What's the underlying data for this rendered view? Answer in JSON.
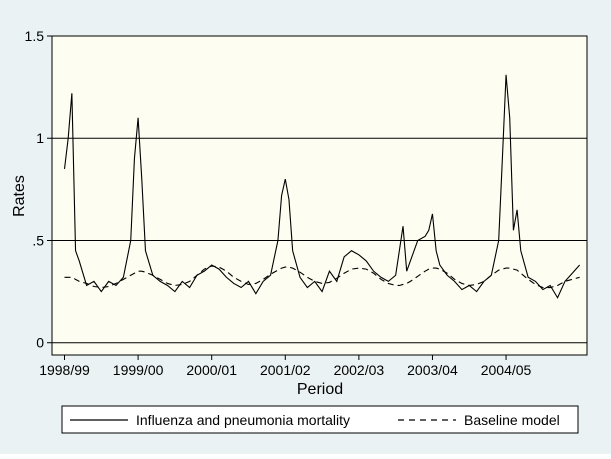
{
  "chart_data": {
    "type": "line",
    "x_label": "Period",
    "y_label": "Rates",
    "xlim": [
      -0.17,
      7.1
    ],
    "ylim": [
      -0.06,
      1.5
    ],
    "xticks": [
      {
        "value": 0,
        "label": "1998/99"
      },
      {
        "value": 1,
        "label": "1999/00"
      },
      {
        "value": 2,
        "label": "2000/01"
      },
      {
        "value": 3,
        "label": "2001/02"
      },
      {
        "value": 4,
        "label": "2002/03"
      },
      {
        "value": 5,
        "label": "2003/04"
      },
      {
        "value": 6,
        "label": "2004/05"
      }
    ],
    "yticks": [
      0,
      {
        "value": 0.5,
        "label": ".5"
      },
      1,
      1.5
    ],
    "grid": true,
    "x": [
      0,
      0.05,
      0.1,
      0.15,
      0.2,
      0.3,
      0.4,
      0.5,
      0.6,
      0.7,
      0.8,
      0.9,
      0.95,
      1.0,
      1.05,
      1.1,
      1.2,
      1.3,
      1.4,
      1.5,
      1.6,
      1.7,
      1.8,
      1.9,
      2.0,
      2.1,
      2.2,
      2.3,
      2.4,
      2.5,
      2.6,
      2.7,
      2.8,
      2.9,
      2.95,
      3.0,
      3.05,
      3.1,
      3.2,
      3.3,
      3.4,
      3.5,
      3.6,
      3.7,
      3.8,
      3.9,
      4.0,
      4.1,
      4.2,
      4.3,
      4.4,
      4.5,
      4.55,
      4.6,
      4.65,
      4.7,
      4.8,
      4.9,
      4.95,
      5.0,
      5.05,
      5.1,
      5.2,
      5.3,
      5.4,
      5.5,
      5.6,
      5.7,
      5.8,
      5.9,
      5.95,
      6.0,
      6.05,
      6.1,
      6.15,
      6.2,
      6.3,
      6.4,
      6.5,
      6.6,
      6.7,
      6.8,
      6.9,
      7.0
    ],
    "series": [
      {
        "name": "Influenza and pneumonia mortality",
        "color": "#000000",
        "dash": "solid",
        "values": [
          0.85,
          1.0,
          1.22,
          0.45,
          0.4,
          0.28,
          0.3,
          0.25,
          0.3,
          0.28,
          0.32,
          0.5,
          0.9,
          1.1,
          0.8,
          0.45,
          0.33,
          0.3,
          0.28,
          0.25,
          0.3,
          0.27,
          0.33,
          0.35,
          0.38,
          0.36,
          0.32,
          0.29,
          0.27,
          0.3,
          0.24,
          0.3,
          0.33,
          0.5,
          0.72,
          0.8,
          0.7,
          0.45,
          0.32,
          0.27,
          0.3,
          0.25,
          0.35,
          0.3,
          0.42,
          0.45,
          0.43,
          0.4,
          0.35,
          0.32,
          0.3,
          0.33,
          0.45,
          0.57,
          0.35,
          0.4,
          0.5,
          0.52,
          0.55,
          0.63,
          0.45,
          0.38,
          0.33,
          0.3,
          0.26,
          0.28,
          0.25,
          0.3,
          0.33,
          0.5,
          0.9,
          1.31,
          1.1,
          0.55,
          0.65,
          0.45,
          0.32,
          0.3,
          0.26,
          0.28,
          0.22,
          0.3,
          0.34,
          0.38
        ]
      },
      {
        "name": "Baseline model",
        "color": "#000000",
        "dash": "dashed",
        "values": [
          0.32,
          0.32,
          0.32,
          0.31,
          0.3,
          0.29,
          0.275,
          0.27,
          0.275,
          0.29,
          0.31,
          0.33,
          0.34,
          0.35,
          0.35,
          0.345,
          0.33,
          0.31,
          0.29,
          0.28,
          0.285,
          0.3,
          0.33,
          0.36,
          0.375,
          0.37,
          0.35,
          0.32,
          0.3,
          0.285,
          0.29,
          0.31,
          0.335,
          0.355,
          0.365,
          0.37,
          0.37,
          0.365,
          0.345,
          0.32,
          0.3,
          0.29,
          0.295,
          0.315,
          0.34,
          0.36,
          0.365,
          0.36,
          0.34,
          0.31,
          0.29,
          0.28,
          0.28,
          0.285,
          0.29,
          0.3,
          0.325,
          0.35,
          0.36,
          0.365,
          0.365,
          0.36,
          0.34,
          0.31,
          0.29,
          0.28,
          0.285,
          0.3,
          0.33,
          0.355,
          0.36,
          0.365,
          0.365,
          0.36,
          0.355,
          0.34,
          0.31,
          0.285,
          0.27,
          0.27,
          0.28,
          0.3,
          0.31,
          0.32
        ]
      }
    ],
    "legend": "bottom"
  }
}
